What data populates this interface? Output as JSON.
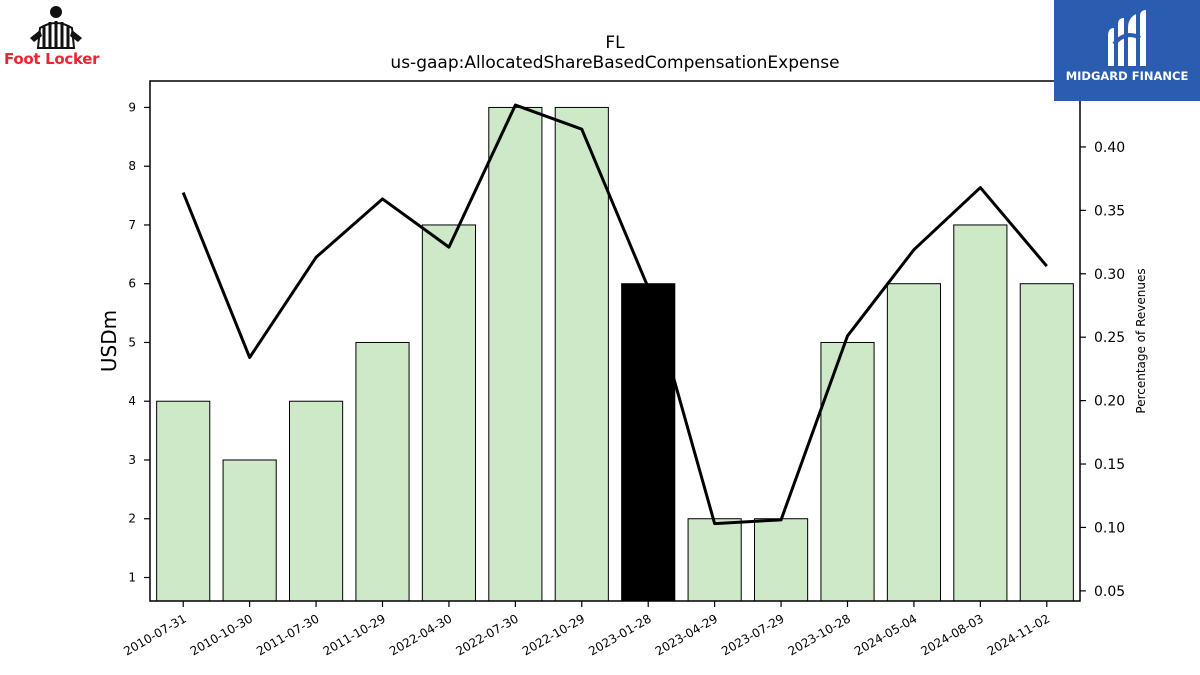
{
  "logos": {
    "left": {
      "text": "Foot Locker",
      "icon": "referee-icon",
      "color": "#e8262f"
    },
    "right": {
      "text": "MIDGARD FINANCE",
      "icon": "midgard-m-icon",
      "background": "#2a5db0"
    }
  },
  "chart_data": {
    "type": "bar",
    "title": "FL",
    "subtitle": "us-gaap:AllocatedShareBasedCompensationExpense",
    "ylabel": "USDm",
    "y2label": "Percentage of Revenues",
    "categories": [
      "2010-07-31",
      "2010-10-30",
      "2011-07-30",
      "2011-10-29",
      "2022-04-30",
      "2022-07-30",
      "2022-10-29",
      "2023-01-28",
      "2023-04-29",
      "2023-07-29",
      "2023-10-28",
      "2024-05-04",
      "2024-08-03",
      "2024-11-02"
    ],
    "series": [
      {
        "type": "bar",
        "values": [
          4,
          3,
          4,
          5,
          7,
          9,
          9,
          6,
          2,
          2,
          5,
          6,
          7,
          6
        ],
        "color": "#cde9c7",
        "highlight_index": 7,
        "highlight_color": "#000000"
      },
      {
        "type": "line",
        "axis": "right",
        "values": [
          0.364,
          0.234,
          0.313,
          0.359,
          0.321,
          0.433,
          0.414,
          0.289,
          0.103,
          0.106,
          0.251,
          0.319,
          0.368,
          0.306
        ],
        "color": "#000000"
      }
    ],
    "ylim": [
      0.6,
      9.45
    ],
    "yticks": [
      "1",
      "2",
      "3",
      "4",
      "5",
      "6",
      "7",
      "8",
      "9"
    ],
    "y2lim": [
      0.042,
      0.452
    ],
    "y2ticks": [
      "0.05",
      "0.10",
      "0.15",
      "0.20",
      "0.25",
      "0.30",
      "0.35",
      "0.40"
    ],
    "grid": false
  }
}
